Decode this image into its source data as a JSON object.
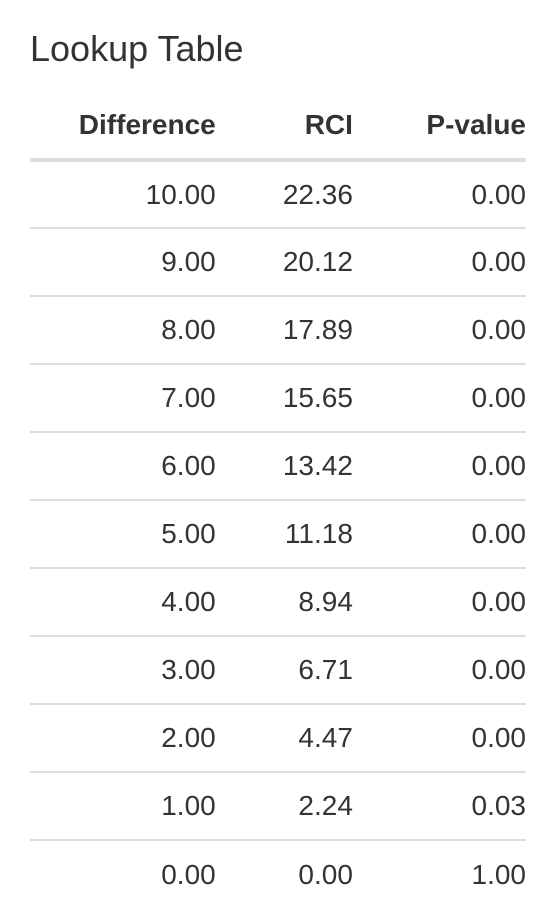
{
  "title": "Lookup Table",
  "table": {
    "headers": {
      "difference": "Difference",
      "rci": "RCI",
      "pvalue": "P-value"
    },
    "rows": [
      {
        "difference": "10.00",
        "rci": "22.36",
        "pvalue": "0.00"
      },
      {
        "difference": "9.00",
        "rci": "20.12",
        "pvalue": "0.00"
      },
      {
        "difference": "8.00",
        "rci": "17.89",
        "pvalue": "0.00"
      },
      {
        "difference": "7.00",
        "rci": "15.65",
        "pvalue": "0.00"
      },
      {
        "difference": "6.00",
        "rci": "13.42",
        "pvalue": "0.00"
      },
      {
        "difference": "5.00",
        "rci": "11.18",
        "pvalue": "0.00"
      },
      {
        "difference": "4.00",
        "rci": "8.94",
        "pvalue": "0.00"
      },
      {
        "difference": "3.00",
        "rci": "6.71",
        "pvalue": "0.00"
      },
      {
        "difference": "2.00",
        "rci": "4.47",
        "pvalue": "0.00"
      },
      {
        "difference": "1.00",
        "rci": "2.24",
        "pvalue": "0.03"
      },
      {
        "difference": "0.00",
        "rci": "0.00",
        "pvalue": "1.00"
      }
    ]
  },
  "colors": {
    "text": "#333333",
    "rule": "#dddddd",
    "background": "#ffffff"
  }
}
